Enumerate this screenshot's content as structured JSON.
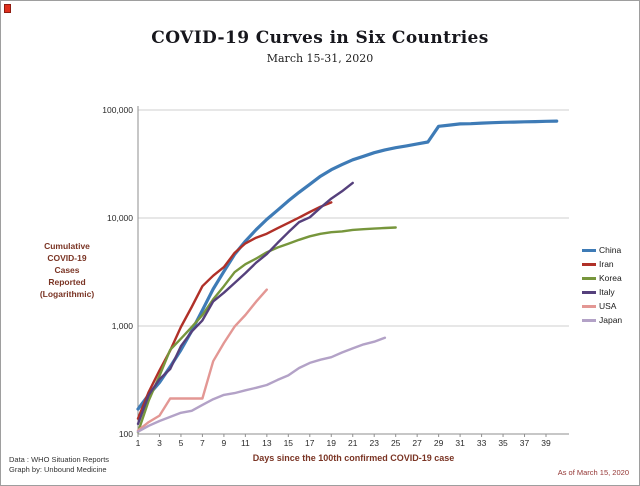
{
  "header": {
    "title": "COVID-19 Curves in Six Countries",
    "subtitle": "March 15-31, 2020"
  },
  "footer": {
    "source_line1": "Data : WHO Situation Reports",
    "source_line2": "Graph by: Unbound Medicine",
    "as_of": "As of March 15, 2020"
  },
  "chart_data": {
    "type": "line",
    "title": "COVID-19 Curves in Six Countries",
    "subtitle": "March 15-31, 2020",
    "xlabel": "Days since the 100th confirmed COVID-19 case",
    "ylabel_lines": [
      "Cumulative",
      "COVID-19",
      "Cases",
      "Reported",
      "(Logarithmic)"
    ],
    "y_scale": "log",
    "ylim": [
      100,
      100000
    ],
    "xlim": [
      1,
      41
    ],
    "grid": "horizontal",
    "legend_position": "right",
    "y_ticks": [
      {
        "value": 100,
        "label": "100"
      },
      {
        "value": 1000,
        "label": "1,000"
      },
      {
        "value": 10000,
        "label": "10,000"
      },
      {
        "value": 100000,
        "label": "100,000"
      }
    ],
    "x_ticks": [
      1,
      3,
      5,
      7,
      9,
      11,
      13,
      15,
      17,
      19,
      21,
      23,
      25,
      27,
      29,
      31,
      33,
      35,
      37,
      39
    ],
    "series": [
      {
        "name": "China",
        "color": "#3e7bb6",
        "start_day": 1,
        "values": [
          170,
          230,
          300,
          420,
          600,
          900,
          1400,
          2200,
          3200,
          4600,
          6100,
          7800,
          9700,
          11800,
          14400,
          17300,
          20500,
          24400,
          28000,
          31200,
          34600,
          37300,
          40200,
          42700,
          44800,
          46500,
          48500,
          50600,
          70600,
          72500,
          74300,
          74700,
          75600,
          76300,
          76900,
          77300,
          77800,
          78100,
          78600,
          79000
        ]
      },
      {
        "name": "Iran",
        "color": "#b03028",
        "start_day": 1,
        "values": [
          139,
          245,
          388,
          593,
          978,
          1501,
          2336,
          2922,
          3513,
          4747,
          5823,
          6566,
          7161,
          8042,
          9000,
          10075,
          11364,
          12729,
          13938
        ]
      },
      {
        "name": "Korea",
        "color": "#77963c",
        "start_day": 1,
        "values": [
          104,
          204,
          346,
          602,
          763,
          977,
          1261,
          1766,
          2337,
          3150,
          3736,
          4212,
          4812,
          5328,
          5766,
          6284,
          6767,
          7134,
          7382,
          7513,
          7755,
          7869,
          7979,
          8086,
          8162
        ]
      },
      {
        "name": "Italy",
        "color": "#55407c",
        "start_day": 1,
        "values": [
          124,
          229,
          322,
          400,
          650,
          888,
          1128,
          1689,
          2036,
          2502,
          3089,
          3858,
          4636,
          5883,
          7375,
          9172,
          10149,
          12462,
          15113,
          17660,
          21157
        ]
      },
      {
        "name": "USA",
        "color": "#e39794",
        "start_day": 1,
        "values": [
          108,
          129,
          148,
          213,
          213,
          213,
          213,
          472,
          696,
          987,
          1264,
          1678,
          2174
        ]
      },
      {
        "name": "Japan",
        "color": "#b3a2c7",
        "start_day": 1,
        "values": [
          105,
          119,
          132,
          144,
          157,
          164,
          186,
          210,
          230,
          239,
          254,
          268,
          284,
          317,
          349,
          408,
          455,
          488,
          514,
          568,
          620,
          675,
          716,
          780
        ]
      }
    ]
  }
}
